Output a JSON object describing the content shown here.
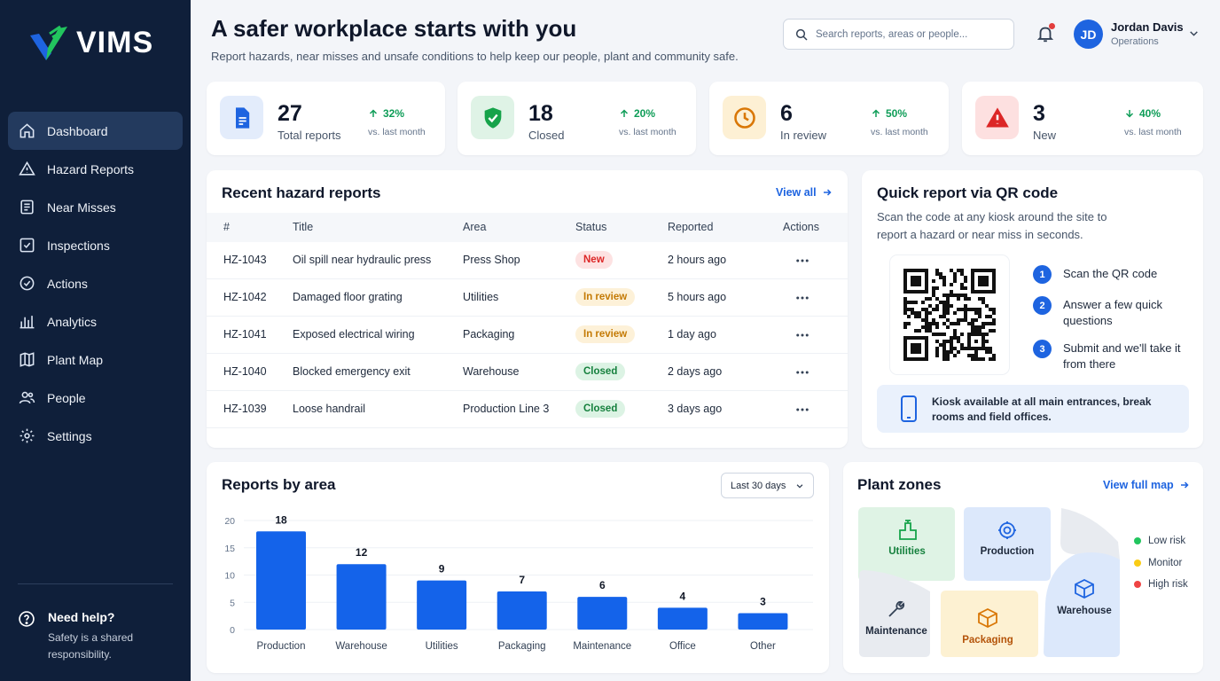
{
  "app": {
    "logo_text": "VIMS"
  },
  "sidebar": {
    "items": [
      {
        "label": "Dashboard",
        "icon": "home-icon"
      },
      {
        "label": "Hazard Reports",
        "icon": "warning-icon"
      },
      {
        "label": "Near Misses",
        "icon": "document-icon"
      },
      {
        "label": "Inspections",
        "icon": "checkbox-icon"
      },
      {
        "label": "Actions",
        "icon": "check-circle-icon"
      },
      {
        "label": "Analytics",
        "icon": "bar-chart-icon"
      },
      {
        "label": "Plant Map",
        "icon": "map-icon"
      },
      {
        "label": "People",
        "icon": "people-icon"
      },
      {
        "label": "Settings",
        "icon": "gear-icon"
      }
    ],
    "help": {
      "title": "Need help?",
      "subtitle": "Safety is a shared responsibility."
    }
  },
  "header": {
    "title": "A safer workplace starts with you",
    "subtitle": "Report hazards, near misses and unsafe conditions to help keep our people, plant and community safe.",
    "search_placeholder": "Search reports, areas or people...",
    "user": {
      "initials": "JD",
      "name": "Jordan Davis",
      "role": "Operations"
    }
  },
  "kpis": [
    {
      "value": "27",
      "label": "Total reports",
      "change": "32%",
      "direction": "up",
      "vs": "vs. last month",
      "icon": "report-icon",
      "accent": "#1e64e0"
    },
    {
      "value": "18",
      "label": "Closed",
      "change": "20%",
      "direction": "up",
      "vs": "vs. last month",
      "icon": "shield-check-icon",
      "accent": "#16a34a"
    },
    {
      "value": "6",
      "label": "In review",
      "change": "50%",
      "direction": "up",
      "vs": "vs. last month",
      "icon": "clock-icon",
      "accent": "#d97706"
    },
    {
      "value": "3",
      "label": "New",
      "change": "40%",
      "direction": "down",
      "vs": "vs. last month",
      "icon": "alert-triangle-icon",
      "accent": "#dc2626"
    }
  ],
  "recent": {
    "title": "Recent hazard reports",
    "view_all": "View all",
    "columns": [
      "#",
      "Title",
      "Area",
      "Status",
      "Reported",
      "Actions"
    ],
    "rows": [
      {
        "id": "HZ-1043",
        "title": "Oil spill near hydraulic press",
        "area": "Press Shop",
        "status": "New",
        "reported": "2 hours ago"
      },
      {
        "id": "HZ-1042",
        "title": "Damaged floor grating",
        "area": "Utilities",
        "status": "In review",
        "reported": "5 hours ago"
      },
      {
        "id": "HZ-1041",
        "title": "Exposed electrical wiring",
        "area": "Packaging",
        "status": "In review",
        "reported": "1 day ago"
      },
      {
        "id": "HZ-1040",
        "title": "Blocked emergency exit",
        "area": "Warehouse",
        "status": "Closed",
        "reported": "2 days ago"
      },
      {
        "id": "HZ-1039",
        "title": "Loose handrail",
        "area": "Production Line 3",
        "status": "Closed",
        "reported": "3 days ago"
      }
    ],
    "status_colors": {
      "New": {
        "bg": "#fde2e2",
        "fg": "#dc2626"
      },
      "In review": {
        "bg": "#fdf1d8",
        "fg": "#c47a05"
      },
      "Closed": {
        "bg": "#dcf3e4",
        "fg": "#15803d"
      }
    }
  },
  "qr": {
    "title": "Quick report via QR code",
    "text": "Scan the code at any kiosk around the site to report a hazard or near miss in seconds.",
    "steps": [
      {
        "num": "1",
        "text": "Scan the QR code"
      },
      {
        "num": "2",
        "text": "Answer a few quick questions"
      },
      {
        "num": "3",
        "text": "Submit and we'll take it from there"
      }
    ],
    "kiosk": "Kiosk available at all main entrances, break rooms and field offices."
  },
  "chart_data": {
    "type": "bar",
    "title": "Reports by area",
    "categories": [
      "Production",
      "Warehouse",
      "Utilities",
      "Packaging",
      "Maintenance",
      "Office",
      "Other"
    ],
    "values": [
      18,
      12,
      9,
      7,
      6,
      4,
      3
    ],
    "ylim": [
      0,
      20
    ],
    "yticks": [
      0,
      5,
      10,
      15,
      20
    ],
    "xlabel": "",
    "ylabel": "",
    "grid": true,
    "color": "#1463ea",
    "period": "Last 30 days"
  },
  "zones": {
    "title": "Plant zones",
    "view_map": "View full map",
    "areas": [
      {
        "name": "Utilities",
        "risk": "Low risk",
        "icon": "pipe-icon"
      },
      {
        "name": "Production",
        "risk": "Monitor",
        "icon": "gear-icon"
      },
      {
        "name": "Warehouse",
        "risk": "Monitor",
        "icon": "box-icon"
      },
      {
        "name": "Maintenance",
        "risk": "Monitor",
        "icon": "wrench-icon"
      },
      {
        "name": "Packaging",
        "risk": "Monitor",
        "icon": "box-icon"
      }
    ],
    "legend": [
      {
        "label": "Low risk",
        "color": "#22c55e"
      },
      {
        "label": "Monitor",
        "color": "#facc15"
      },
      {
        "label": "High risk",
        "color": "#ef4444"
      }
    ]
  }
}
